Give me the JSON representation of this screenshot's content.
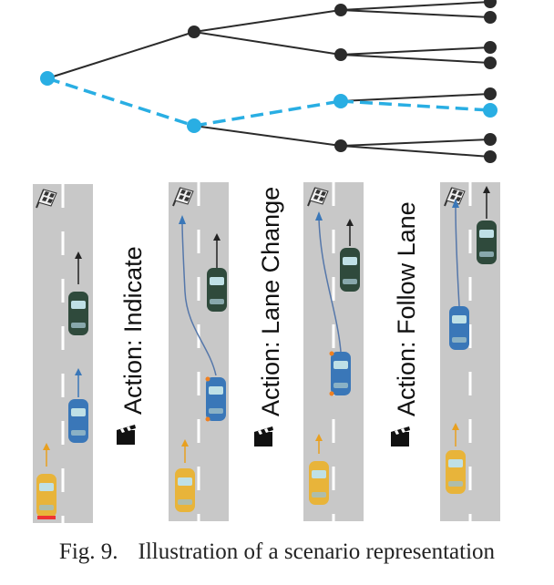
{
  "tree": {
    "highlight_color": "#29aee3",
    "node_color": "#2b2b2b"
  },
  "panels": [
    {
      "id": "indicate"
    },
    {
      "id": "lane-change",
      "action": "Action: Lane Change"
    },
    {
      "id": "follow-lane",
      "action": "Action: Follow Lane"
    },
    {
      "id": "final"
    }
  ],
  "first_action": "Action: Indicate",
  "colors": {
    "road": "#c8c8c8",
    "lane_marking": "#ffffff",
    "ego_car": "#3a77b8",
    "lead_car": "#2f4a3c",
    "rear_car": "#e8b43a",
    "trajectory": "#5577aa"
  },
  "caption": {
    "fig": "Fig. 9.",
    "text": "Illustration of a scenario representation"
  }
}
